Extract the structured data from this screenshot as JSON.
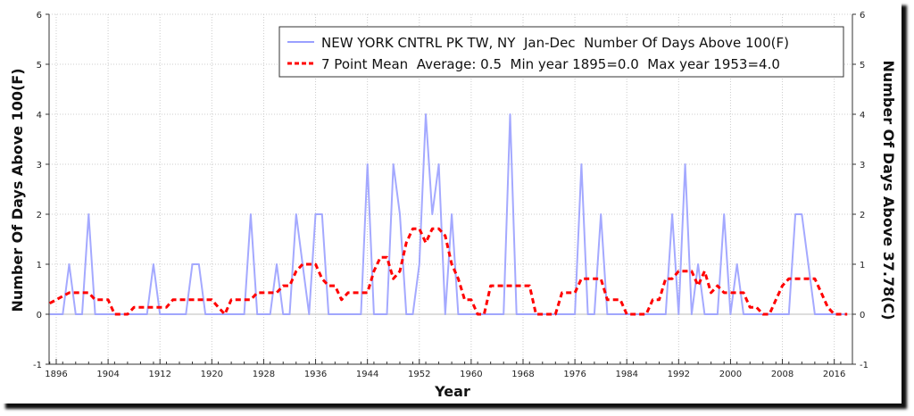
{
  "chart_data": {
    "type": "line",
    "title": "",
    "xlabel": "Year",
    "ylabel": "Number Of Days Above 100(F)",
    "ylabel_right": "Number Of Days Above 37.78(C)",
    "xlim": [
      1894.9,
      2018.8
    ],
    "ylim": [
      -1,
      6
    ],
    "xticks": [
      1896,
      1904,
      1912,
      1920,
      1928,
      1936,
      1944,
      1952,
      1960,
      1968,
      1976,
      1984,
      1992,
      2000,
      2008,
      2016
    ],
    "yticks": [
      -1,
      0,
      1,
      2,
      3,
      4,
      5,
      6
    ],
    "grid": true,
    "legend_position": "top-right",
    "x_start": 1895,
    "series": [
      {
        "name": "NEW YORK CNTRL PK TW, NY  Jan-Dec  Number Of Days Above 100(F)",
        "color": "#9aa0ff",
        "style": "solid",
        "values": [
          0,
          0,
          0,
          1,
          0,
          0,
          2,
          0,
          0,
          0,
          0,
          0,
          0,
          0,
          0,
          0,
          1,
          0,
          0,
          0,
          0,
          0,
          1,
          1,
          0,
          0,
          0,
          0,
          0,
          0,
          0,
          2,
          0,
          0,
          0,
          1,
          0,
          0,
          2,
          1,
          0,
          2,
          2,
          0,
          0,
          0,
          0,
          0,
          0,
          3,
          0,
          0,
          0,
          3,
          2,
          0,
          0,
          1,
          4,
          2,
          3,
          0,
          2,
          0,
          0,
          0,
          0,
          0,
          0,
          0,
          0,
          4,
          0,
          0,
          0,
          0,
          0,
          0,
          0,
          0,
          0,
          0,
          3,
          0,
          0,
          2,
          0,
          0,
          0,
          0,
          0,
          0,
          0,
          0,
          0,
          0,
          2,
          0,
          3,
          0,
          1,
          0,
          0,
          0,
          2,
          0,
          1,
          0,
          0,
          0,
          0,
          0,
          0,
          0,
          0,
          2,
          2,
          1,
          0,
          0,
          0,
          0,
          0,
          0
        ]
      },
      {
        "name": "7 Point Mean  Average: 0.5  Min year 1895=0.0  Max year 1953=4.0",
        "color": "#ff0000",
        "style": "dashed",
        "values": [
          0.22,
          0.29,
          0.36,
          0.43,
          0.43,
          0.43,
          0.43,
          0.29,
          0.29,
          0.29,
          0,
          0,
          0,
          0.14,
          0.14,
          0.14,
          0.14,
          0.14,
          0.14,
          0.29,
          0.29,
          0.29,
          0.29,
          0.29,
          0.29,
          0.29,
          0.14,
          0,
          0.29,
          0.29,
          0.29,
          0.29,
          0.43,
          0.43,
          0.43,
          0.43,
          0.57,
          0.57,
          0.86,
          1.0,
          1.0,
          1.0,
          0.71,
          0.57,
          0.57,
          0.29,
          0.43,
          0.43,
          0.43,
          0.43,
          0.86,
          1.14,
          1.14,
          0.71,
          0.86,
          1.43,
          1.71,
          1.71,
          1.43,
          1.71,
          1.71,
          1.57,
          1.0,
          0.71,
          0.29,
          0.29,
          0,
          0,
          0.57,
          0.57,
          0.57,
          0.57,
          0.57,
          0.57,
          0.57,
          0,
          0,
          0,
          0,
          0.43,
          0.43,
          0.43,
          0.71,
          0.71,
          0.71,
          0.71,
          0.29,
          0.29,
          0.29,
          0,
          0,
          0,
          0,
          0.29,
          0.29,
          0.71,
          0.71,
          0.86,
          0.86,
          0.86,
          0.57,
          0.86,
          0.43,
          0.57,
          0.43,
          0.43,
          0.43,
          0.43,
          0.14,
          0.14,
          0,
          0,
          0.29,
          0.57,
          0.71,
          0.71,
          0.71,
          0.71,
          0.71,
          0.43,
          0.14,
          0,
          0,
          0
        ]
      }
    ]
  }
}
